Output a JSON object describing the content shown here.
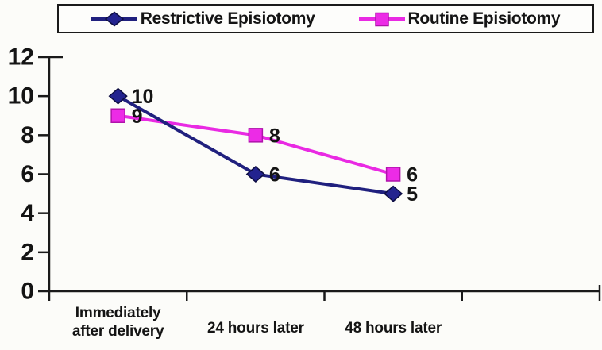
{
  "chart_data": {
    "type": "line",
    "title": "",
    "xlabel": "",
    "ylabel": "",
    "categories": [
      "Immediately\nafter delivery",
      "24 hours later",
      "48 hours later"
    ],
    "x_slots": 4,
    "series": [
      {
        "name": "Restrictive Episiotomy",
        "marker": "diamond",
        "color": "#20207E",
        "marker_fill": "#23238F",
        "marker_stroke": "#0D0D42",
        "values": [
          10,
          6,
          5
        ]
      },
      {
        "name": "Routine Episiotomy",
        "marker": "square",
        "color": "#E92AE3",
        "marker_fill": "#EC2BE6",
        "marker_stroke": "#B013AB",
        "values": [
          9,
          8,
          6
        ]
      }
    ],
    "y_ticks": [
      0,
      2,
      4,
      6,
      8,
      10,
      12
    ],
    "ylim": [
      0,
      12
    ],
    "grid": false,
    "legend_position": "top",
    "data_labels": true,
    "axis_color": "#1A1A1A",
    "text_color": "#141414"
  }
}
